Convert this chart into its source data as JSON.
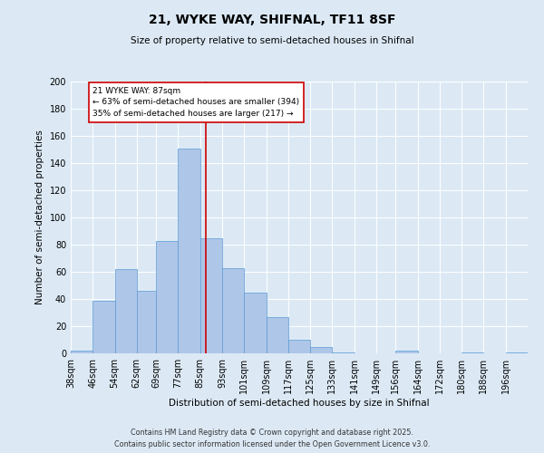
{
  "title1": "21, WYKE WAY, SHIFNAL, TF11 8SF",
  "title2": "Size of property relative to semi-detached houses in Shifnal",
  "xlabel": "Distribution of semi-detached houses by size in Shifnal",
  "ylabel": "Number of semi-detached properties",
  "bin_labels": [
    "38sqm",
    "46sqm",
    "54sqm",
    "62sqm",
    "69sqm",
    "77sqm",
    "85sqm",
    "93sqm",
    "101sqm",
    "109sqm",
    "117sqm",
    "125sqm",
    "133sqm",
    "141sqm",
    "149sqm",
    "156sqm",
    "164sqm",
    "172sqm",
    "180sqm",
    "188sqm",
    "196sqm"
  ],
  "bin_edges": [
    38,
    46,
    54,
    62,
    69,
    77,
    85,
    93,
    101,
    109,
    117,
    125,
    133,
    141,
    149,
    156,
    164,
    172,
    180,
    188,
    196,
    204
  ],
  "counts": [
    2,
    39,
    62,
    46,
    83,
    151,
    85,
    63,
    45,
    27,
    10,
    5,
    1,
    0,
    0,
    2,
    0,
    0,
    1,
    0,
    1
  ],
  "property_value": 87,
  "bar_facecolor": "#aec6e8",
  "bar_edgecolor": "#5b9bd5",
  "vline_color": "#cc0000",
  "annotation_box_edgecolor": "#cc0000",
  "annotation_text_line1": "21 WYKE WAY: 87sqm",
  "annotation_text_line2": "← 63% of semi-detached houses are smaller (394)",
  "annotation_text_line3": "35% of semi-detached houses are larger (217) →",
  "ylim": [
    0,
    200
  ],
  "yticks": [
    0,
    20,
    40,
    60,
    80,
    100,
    120,
    140,
    160,
    180,
    200
  ],
  "background_color": "#dce9f5",
  "plot_background": "#dce9f5",
  "footer_line1": "Contains HM Land Registry data © Crown copyright and database right 2025.",
  "footer_line2": "Contains public sector information licensed under the Open Government Licence v3.0."
}
